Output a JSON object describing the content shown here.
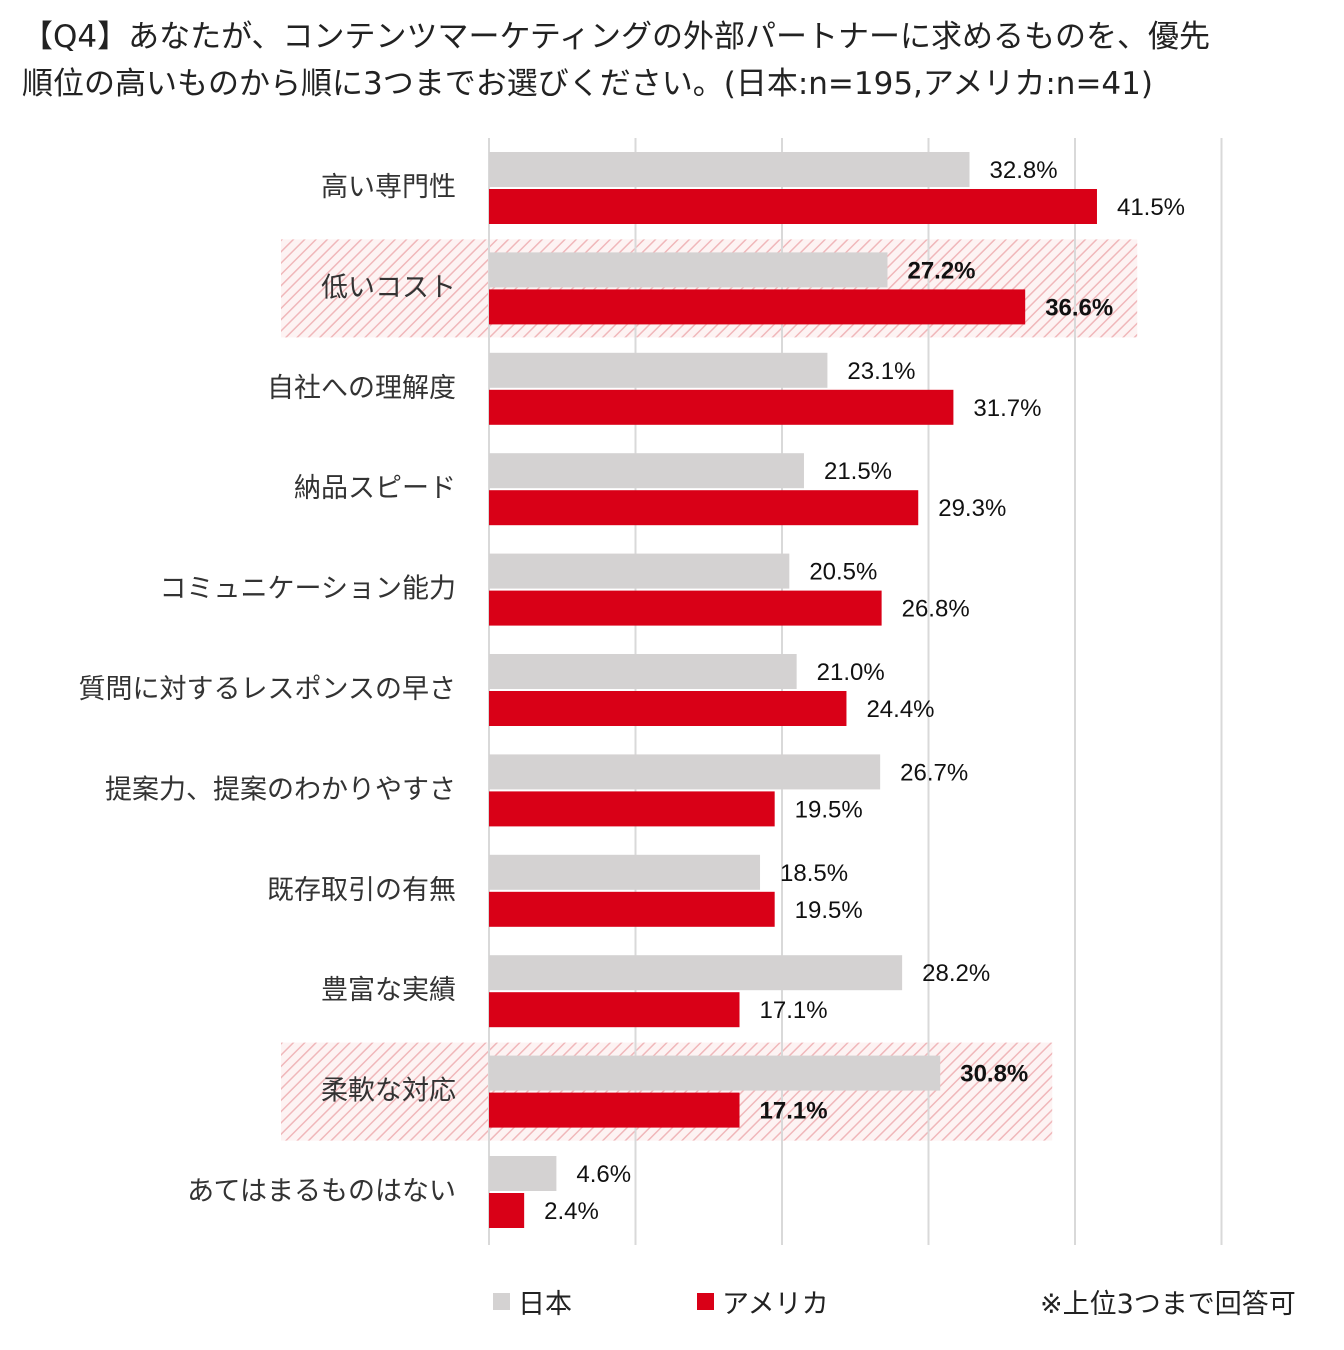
{
  "title": {
    "line1": "【Q4】あなたが、コンテンツマーケティングの外部パートナーに求めるものを、優先",
    "line2": "順位の高いものから順に3つまでお選びください。(日本:n=195,アメリカ:n=41)"
  },
  "chart_data": {
    "type": "bar",
    "orientation": "horizontal",
    "xlim": [
      0,
      50
    ],
    "grid": true,
    "categories": [
      "高い専門性",
      "低いコスト",
      "自社への理解度",
      "納品スピード",
      "コミュニケーション能力",
      "質問に対するレスポンスの早さ",
      "提案力、提案のわかりやすさ",
      "既存取引の有無",
      "豊富な実績",
      "柔軟な対応",
      "あてはまるものはない"
    ],
    "highlighted_categories": [
      "低いコスト",
      "柔軟な対応"
    ],
    "series": [
      {
        "name": "日本",
        "color": "#d4d2d2",
        "values": [
          32.8,
          27.2,
          23.1,
          21.5,
          20.5,
          21.0,
          26.7,
          18.5,
          28.2,
          30.8,
          4.6
        ],
        "labels": [
          "32.8%",
          "27.2%",
          "23.1%",
          "21.5%",
          "20.5%",
          "21.0%",
          "26.7%",
          "18.5%",
          "28.2%",
          "30.8%",
          "4.6%"
        ]
      },
      {
        "name": "アメリカ",
        "color": "#d90017",
        "values": [
          41.5,
          36.6,
          31.7,
          29.3,
          26.8,
          24.4,
          19.5,
          19.5,
          17.1,
          17.1,
          2.4
        ],
        "labels": [
          "41.5%",
          "36.6%",
          "31.7%",
          "29.3%",
          "26.8%",
          "24.4%",
          "19.5%",
          "19.5%",
          "17.1%",
          "17.1%",
          "2.4%"
        ]
      }
    ],
    "legend_position": "bottom"
  },
  "legend": {
    "japan": "日本",
    "usa": "アメリカ"
  },
  "note": "※上位3つまで回答可"
}
